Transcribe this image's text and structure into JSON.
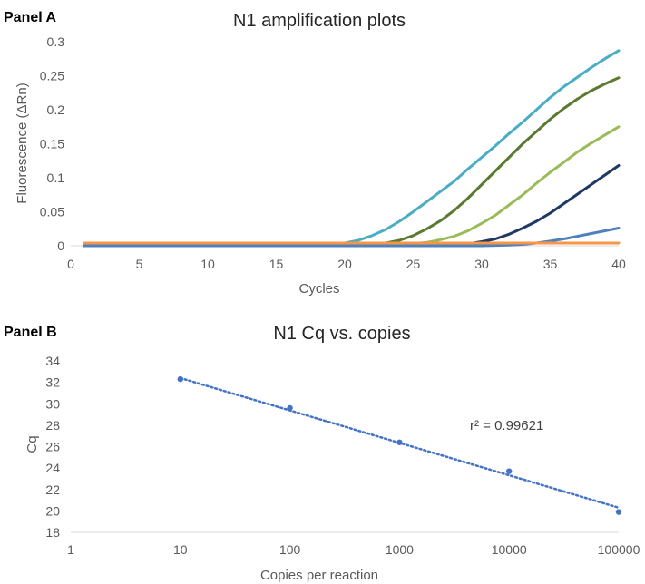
{
  "chart_data": [
    {
      "panel_label": "Panel A",
      "type": "line",
      "title": "N1 amplification plots",
      "xlabel": "Cycles",
      "ylabel": "Fluorescence (ΔRn)",
      "xlim": [
        0,
        40
      ],
      "ylim": [
        0,
        0.3
      ],
      "x_ticks": [
        0,
        5,
        10,
        15,
        20,
        25,
        30,
        35,
        40
      ],
      "y_ticks": [
        0,
        0.05,
        0.1,
        0.15,
        0.2,
        0.25,
        0.3
      ],
      "y_tick_labels": [
        "0",
        "0.05",
        "0.1",
        "0.15",
        "0.2",
        "0.25",
        "0.3"
      ],
      "grid": false,
      "series": [
        {
          "color": "#4BACC6",
          "x": [
            1,
            5,
            10,
            15,
            17,
            19,
            20,
            21,
            22,
            23,
            24,
            25,
            26,
            27,
            28,
            29,
            30,
            31,
            32,
            33,
            34,
            35,
            36,
            37,
            38,
            39,
            40
          ],
          "y": [
            0,
            0,
            0,
            0,
            0.001,
            0.002,
            0.004,
            0.008,
            0.015,
            0.024,
            0.036,
            0.05,
            0.065,
            0.08,
            0.095,
            0.113,
            0.13,
            0.147,
            0.165,
            0.182,
            0.2,
            0.218,
            0.234,
            0.248,
            0.262,
            0.275,
            0.287
          ]
        },
        {
          "color": "#5A7A2F",
          "x": [
            1,
            5,
            10,
            15,
            20,
            21,
            22,
            23,
            24,
            25,
            26,
            27,
            28,
            29,
            30,
            31,
            32,
            33,
            34,
            35,
            36,
            37,
            38,
            39,
            40
          ],
          "y": [
            0,
            0,
            0,
            0,
            0,
            0.001,
            0.002,
            0.004,
            0.008,
            0.015,
            0.025,
            0.037,
            0.052,
            0.07,
            0.09,
            0.11,
            0.13,
            0.15,
            0.168,
            0.186,
            0.202,
            0.216,
            0.228,
            0.238,
            0.247
          ]
        },
        {
          "color": "#9BBB59",
          "x": [
            1,
            5,
            10,
            15,
            20,
            23,
            24,
            25,
            26,
            27,
            28,
            29,
            30,
            31,
            32,
            33,
            34,
            35,
            36,
            37,
            38,
            39,
            40
          ],
          "y": [
            0,
            0,
            0,
            0,
            0,
            0.001,
            0.002,
            0.003,
            0.005,
            0.009,
            0.014,
            0.022,
            0.033,
            0.045,
            0.06,
            0.075,
            0.092,
            0.108,
            0.123,
            0.138,
            0.151,
            0.163,
            0.175
          ]
        },
        {
          "color": "#1F3864",
          "x": [
            1,
            5,
            10,
            15,
            20,
            25,
            27,
            28,
            29,
            30,
            31,
            32,
            33,
            34,
            35,
            36,
            37,
            38,
            39,
            40
          ],
          "y": [
            0,
            0,
            0,
            0,
            0,
            0,
            0.001,
            0.002,
            0.003,
            0.006,
            0.01,
            0.017,
            0.026,
            0.036,
            0.048,
            0.062,
            0.076,
            0.09,
            0.104,
            0.118
          ]
        },
        {
          "color": "#4F81BD",
          "x": [
            1,
            5,
            10,
            15,
            20,
            25,
            30,
            31,
            32,
            33,
            34,
            35,
            36,
            37,
            38,
            39,
            40
          ],
          "y": [
            0,
            0,
            0,
            0,
            0,
            0,
            0,
            0.0005,
            0.001,
            0.002,
            0.004,
            0.007,
            0.01,
            0.014,
            0.018,
            0.022,
            0.026
          ]
        },
        {
          "color": "#F79646",
          "x": [
            1,
            40
          ],
          "y": [
            0.004,
            0.004
          ]
        }
      ]
    },
    {
      "panel_label": "Panel B",
      "type": "scatter",
      "title": "N1 Cq vs. copies",
      "xlabel": "Copies per reaction",
      "ylabel": "Cq",
      "x_scale": "log",
      "xlim": [
        1,
        100000
      ],
      "ylim": [
        18,
        34
      ],
      "x_ticks": [
        1,
        10,
        100,
        1000,
        10000,
        100000
      ],
      "x_tick_labels": [
        "1",
        "10",
        "100",
        "1000",
        "10000",
        "100000"
      ],
      "y_ticks": [
        18,
        20,
        22,
        24,
        26,
        28,
        30,
        32,
        34
      ],
      "grid": false,
      "points": {
        "x": [
          10,
          100,
          1000,
          10000,
          100000
        ],
        "y": [
          32.3,
          29.6,
          26.4,
          23.7,
          19.9
        ]
      },
      "trendline": {
        "style": "dotted",
        "x": [
          10,
          100000
        ],
        "y": [
          32.4,
          20.3
        ]
      },
      "annotation": "r² = 0.99621",
      "color": "#4472C4"
    }
  ]
}
